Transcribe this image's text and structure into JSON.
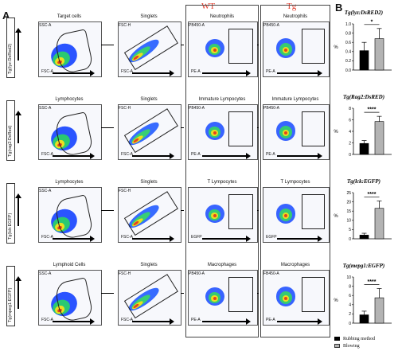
{
  "figure": {
    "panel_a": "A",
    "panel_b": "B",
    "wt_label": "WT",
    "tg_label": "Tg"
  },
  "rows": [
    {
      "label": "Tg(lyz:DsRed2)",
      "gate1_title": "Target cells",
      "gate2_title": "Singlets",
      "gate3_title": "Neutrophils",
      "gate4_title": "Neutrophils",
      "g1_y": "SSC-A",
      "g1_x": "FSC-A",
      "g2_y": "FSC-H",
      "g2_x": "FSC-A",
      "g3_y": "PB450-A",
      "g3_x": "PE-A",
      "g4_y": "PB450-A",
      "g4_x": "PE-A"
    },
    {
      "label": "Tg(rag2:DsRed)",
      "gate1_title": "Lymphocytes",
      "gate2_title": "Singlets",
      "gate3_title": "Immature Lympocytes",
      "gate4_title": "Immature Lympocytes",
      "g1_y": "SSC-A",
      "g1_x": "FSC-A",
      "g2_y": "FSC-H",
      "g2_x": "FSC-A",
      "g3_y": "PB450-A",
      "g3_x": "PE-A",
      "g4_y": "PB450-A",
      "g4_x": "PE-A"
    },
    {
      "label": "Tg(lck:EGFP)",
      "gate1_title": "Lymphocytes",
      "gate2_title": "Singlets",
      "gate3_title": "T Lympocytes",
      "gate4_title": "T Lympocytes",
      "g1_y": "SSC-A",
      "g1_x": "FSC-A",
      "g2_y": "FSC-H",
      "g2_x": "FSC-A",
      "g3_y": "",
      "g3_x": "EGFP",
      "g4_y": "",
      "g4_x": "EGFP"
    },
    {
      "label": "Tg(mpeg1:EGFP)",
      "gate1_title": "Lymphoid Cells",
      "gate2_title": "Singlets",
      "gate3_title": "Macrophages",
      "gate4_title": "Macrophages",
      "g1_y": "SSC-A",
      "g1_x": "FSC-A",
      "g2_y": "FSC-H",
      "g2_x": "FSC-A",
      "g3_y": "PB450-A",
      "g3_x": "PE-A",
      "g4_y": "FB450-A",
      "g4_x": "PE-A"
    }
  ],
  "legend": {
    "rubbing": "Rubbing method",
    "blowing": "Blowing",
    "rubbing_color": "#000000",
    "blowing_color": "#b3b3b3"
  },
  "chart_data": [
    {
      "type": "bar",
      "title": "Tg(lyz:DsRED2)",
      "ylabel": "%",
      "categories": [
        "Rubbing method",
        "Blowing"
      ],
      "values": [
        0.42,
        0.68
      ],
      "errors": [
        0.18,
        0.22
      ],
      "ylim": [
        0,
        1.0
      ],
      "yticks": [
        "0.0",
        "0.2",
        "0.4",
        "0.6",
        "0.8",
        "1.0"
      ],
      "significance": "*"
    },
    {
      "type": "bar",
      "title": "Tg(Rag2:DsRED)",
      "ylabel": "%",
      "categories": [
        "Rubbing method",
        "Blowing"
      ],
      "values": [
        1.9,
        5.7
      ],
      "errors": [
        0.5,
        0.9
      ],
      "ylim": [
        0,
        8
      ],
      "yticks": [
        "0",
        "2",
        "4",
        "6",
        "8"
      ],
      "significance": "****"
    },
    {
      "type": "bar",
      "title": "Tg(lck:EGFP)",
      "ylabel": "%",
      "categories": [
        "Rubbing method",
        "Blowing"
      ],
      "values": [
        2.0,
        16.5
      ],
      "errors": [
        1.0,
        4.0
      ],
      "ylim": [
        0,
        25
      ],
      "yticks": [
        "0",
        "5",
        "10",
        "15",
        "20",
        "25"
      ],
      "significance": "****"
    },
    {
      "type": "bar",
      "title": "Tg(mepg1:EGFP)",
      "ylabel": "%",
      "categories": [
        "Rubbing method",
        "Blowing"
      ],
      "values": [
        1.8,
        5.5
      ],
      "errors": [
        0.8,
        2.0
      ],
      "ylim": [
        0,
        10
      ],
      "yticks": [
        "0",
        "2",
        "4",
        "6",
        "8",
        "10"
      ],
      "significance": "****"
    }
  ]
}
